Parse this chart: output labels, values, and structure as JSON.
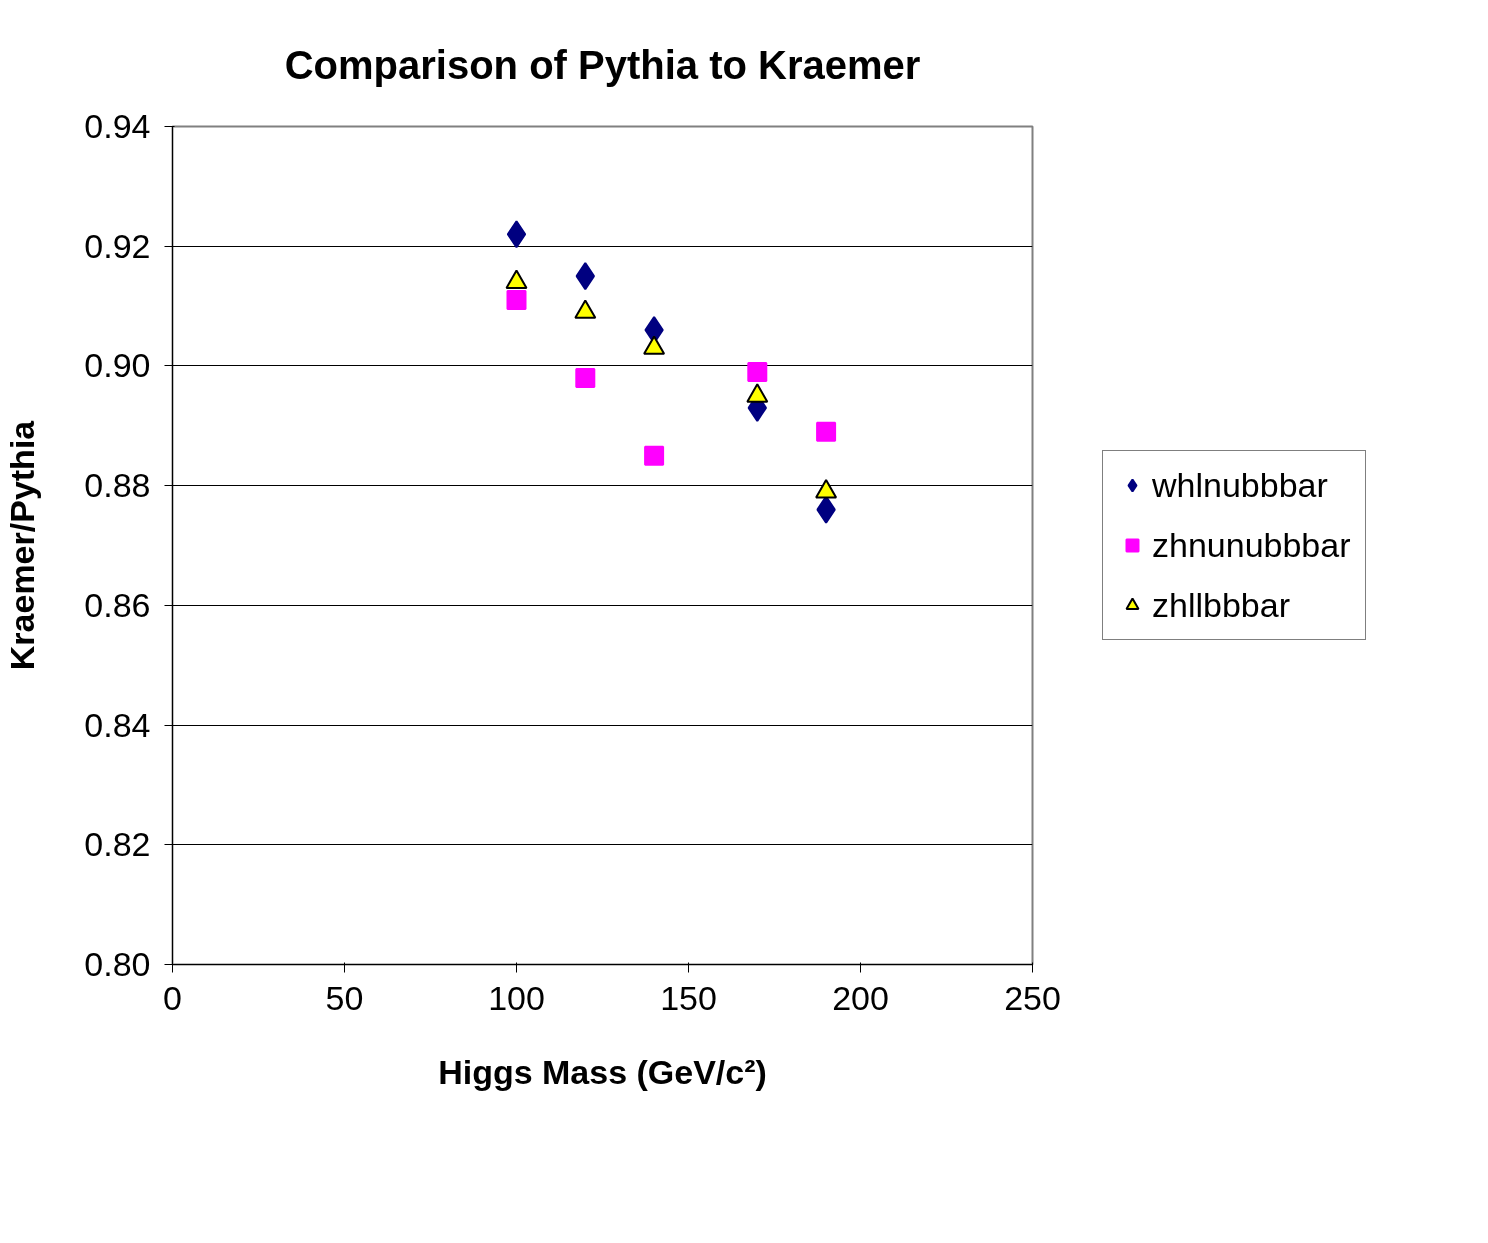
{
  "chart_data": {
    "type": "scatter",
    "title": "Comparison of Pythia to Kraemer",
    "xlabel": "Higgs Mass (GeV/c²)",
    "ylabel": "Kraemer/Pythia",
    "x": [
      100,
      120,
      140,
      170,
      190
    ],
    "series": [
      {
        "name": "whlnubbbar",
        "color": "#000080",
        "marker": "diamond",
        "values": [
          0.922,
          0.915,
          0.906,
          0.893,
          0.876
        ]
      },
      {
        "name": "zhnunubbbar",
        "color": "#ff00ff",
        "marker": "square",
        "values": [
          0.911,
          0.898,
          0.885,
          0.899,
          0.889
        ]
      },
      {
        "name": "zhllbbbar",
        "color": "#ffff00",
        "marker": "triangle",
        "values": [
          0.914,
          0.909,
          0.903,
          0.895,
          0.879
        ]
      }
    ],
    "xlim": [
      0,
      250
    ],
    "xticks": [
      0,
      50,
      100,
      150,
      200,
      250
    ],
    "ylim": [
      0.8,
      0.94
    ],
    "yticks": [
      {
        "value": 0.8,
        "label": "0.80"
      },
      {
        "value": 0.82,
        "label": "0.82"
      },
      {
        "value": 0.84,
        "label": "0.84"
      },
      {
        "value": 0.86,
        "label": "0.86"
      },
      {
        "value": 0.88,
        "label": "0.88"
      },
      {
        "value": 0.9,
        "label": "0.90"
      },
      {
        "value": 0.92,
        "label": "0.92"
      },
      {
        "value": 0.94,
        "label": "0.94"
      }
    ],
    "grid": "y",
    "legend": "right"
  }
}
